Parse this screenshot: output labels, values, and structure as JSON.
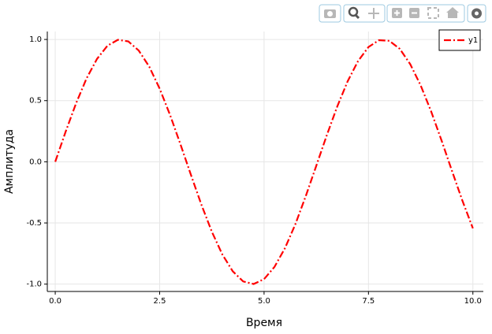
{
  "chart_data": {
    "type": "line",
    "x_label": "Время",
    "y_label": "Амплитуда",
    "x": [
      0,
      0.25,
      0.5,
      0.75,
      1,
      1.25,
      1.5,
      1.75,
      2,
      2.25,
      2.5,
      2.75,
      3,
      3.25,
      3.5,
      3.75,
      4,
      4.25,
      4.5,
      4.75,
      5,
      5.25,
      5.5,
      5.75,
      6,
      6.25,
      6.5,
      6.75,
      7,
      7.25,
      7.5,
      7.75,
      8,
      8.25,
      8.5,
      8.75,
      9,
      9.25,
      9.5,
      9.75,
      10
    ],
    "series": [
      {
        "name": "y1",
        "color": "#ff0000",
        "dash": "dashdot",
        "values": [
          0,
          0.247,
          0.479,
          0.682,
          0.841,
          0.949,
          0.997,
          0.984,
          0.909,
          0.778,
          0.598,
          0.382,
          0.141,
          -0.108,
          -0.351,
          -0.572,
          -0.757,
          -0.895,
          -0.978,
          -0.999,
          -0.959,
          -0.859,
          -0.706,
          -0.51,
          -0.279,
          -0.033,
          0.215,
          0.45,
          0.657,
          0.823,
          0.938,
          0.994,
          0.989,
          0.923,
          0.798,
          0.624,
          0.412,
          0.174,
          -0.075,
          -0.319,
          -0.544
        ]
      }
    ],
    "xlim": [
      -0.19,
      10.25
    ],
    "ylim": [
      -1.06,
      1.065
    ],
    "xticks": [
      {
        "value": 0,
        "label": "0.0"
      },
      {
        "value": 2.5,
        "label": "2.5"
      },
      {
        "value": 5,
        "label": "5.0"
      },
      {
        "value": 7.5,
        "label": "7.5"
      },
      {
        "value": 10,
        "label": "10.0"
      }
    ],
    "yticks": [
      {
        "value": -1,
        "label": "-1.0"
      },
      {
        "value": -0.5,
        "label": "-0.5"
      },
      {
        "value": 0,
        "label": "0.0"
      },
      {
        "value": 0.5,
        "label": "0.5"
      },
      {
        "value": 1,
        "label": "1.0"
      }
    ],
    "grid": true,
    "legend_position": "top-right"
  }
}
